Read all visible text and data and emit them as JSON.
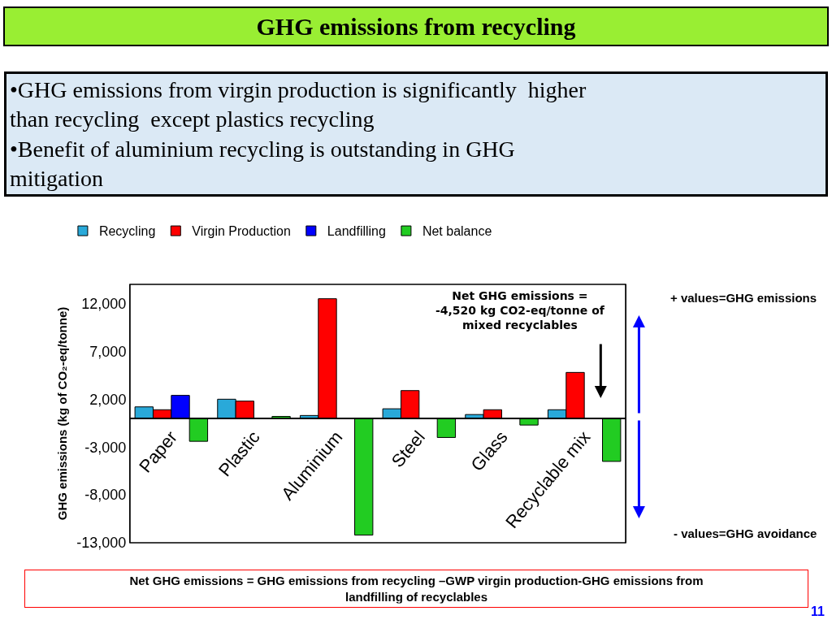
{
  "chart_data": {
    "type": "bar",
    "title": "GHG emissions from recycling",
    "subtitle": "•GHG emissions from virgin production is significantly  higher\nthan recycling  except plastics recycling\n•Benefit of aluminium recycling is outstanding in GHG\nmitigation",
    "ylabel": "GHG emissions (kg of CO₂-eq/tonne)",
    "categories": [
      "Paper",
      "Plastic",
      "Aluminium",
      "Steel",
      "Glass",
      "Recyclable mix"
    ],
    "series": [
      {
        "name": "Recycling",
        "color": "#29a9d9",
        "values": [
          1200,
          2000,
          300,
          1000,
          400,
          900
        ]
      },
      {
        "name": "Virgin Production",
        "color": "#ff0000",
        "values": [
          900,
          1800,
          12500,
          2900,
          900,
          4800
        ]
      },
      {
        "name": "Landfilling",
        "color": "#0000ff",
        "values": [
          2400,
          null,
          null,
          null,
          null,
          null
        ]
      },
      {
        "name": "Net balance",
        "color": "#22cc22",
        "values": [
          -2400,
          200,
          -12200,
          -2000,
          -700,
          -4500
        ]
      }
    ],
    "ylim": [
      -13000,
      14000
    ],
    "yticks": [
      {
        "value": -13000,
        "label": "-13,000"
      },
      {
        "value": -8000,
        "label": "-8,000"
      },
      {
        "value": -3000,
        "label": "-3,000"
      },
      {
        "value": 2000,
        "label": "2,000"
      },
      {
        "value": 7000,
        "label": "7,000"
      },
      {
        "value": 12000,
        "label": "12,000"
      }
    ],
    "legend": "top",
    "annotations": [
      "Net GHG emissions =\n-4,520 kg CO2-eq/tonne of\nmixed recyclables",
      "+ values=GHG emissions",
      "- values=GHG avoidance",
      "Net GHG emissions = GHG emissions from recycling –GWP virgin production-GHG emissions from\nlandfilling of recyclables",
      "11"
    ]
  }
}
